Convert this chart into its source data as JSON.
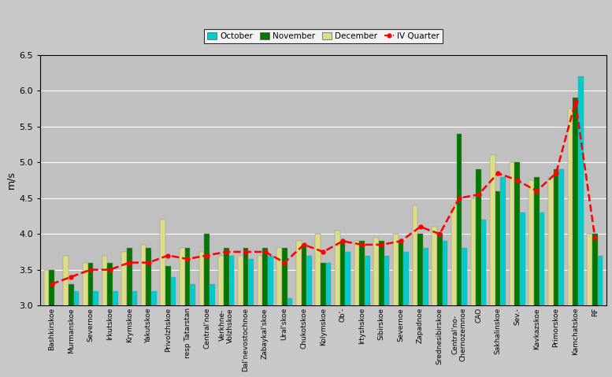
{
  "categories": [
    "Bashkirskoe",
    "Murmanskoe",
    "Severnoe",
    "Irkutskoe",
    "Krymskoe",
    "Yakutskoe",
    "Privolzhskoe",
    "resp Tatarstan",
    "Central'noe",
    "Verkhne-\nVolzhskoe",
    "Dal'nevostochnoe",
    "Zabaykal'skoe",
    "Ural'skoe",
    "Chukotskoe",
    "Kolymskoe",
    "Ob'-",
    "Irtyshskoe",
    "Sibirskoe",
    "Severnoe",
    "Zapadnoe",
    "Srednesibirskoe",
    "Central'no-\nChernozemnoe",
    "CAO",
    "Sakhalinskoe",
    "Sev.-",
    "Kavkazskoe",
    "Primorskoe",
    "Kamchatskoe",
    "RF"
  ],
  "october": [
    3.0,
    3.2,
    3.2,
    3.2,
    3.2,
    3.2,
    3.4,
    3.3,
    3.3,
    3.7,
    3.65,
    3.7,
    3.1,
    3.7,
    3.6,
    3.75,
    3.7,
    3.7,
    3.75,
    3.8,
    3.9,
    3.8,
    4.2,
    4.8,
    4.3,
    4.3,
    4.9,
    6.2,
    3.7
  ],
  "november": [
    3.5,
    3.3,
    3.6,
    3.6,
    3.8,
    3.8,
    3.55,
    3.8,
    4.0,
    3.8,
    3.8,
    3.8,
    3.8,
    3.85,
    3.6,
    3.9,
    3.9,
    3.9,
    3.9,
    4.0,
    4.0,
    5.4,
    4.9,
    4.6,
    5.0,
    4.8,
    4.9,
    5.9,
    4.0
  ],
  "december": [
    3.5,
    3.7,
    3.6,
    3.7,
    3.75,
    3.85,
    4.2,
    3.8,
    3.75,
    3.7,
    3.7,
    3.7,
    3.8,
    3.9,
    4.0,
    4.05,
    3.9,
    3.95,
    4.0,
    4.4,
    4.1,
    4.4,
    4.5,
    5.1,
    5.0,
    4.75,
    4.8,
    5.75,
    4.0
  ],
  "iv_quarter": [
    3.3,
    3.4,
    3.5,
    3.5,
    3.6,
    3.6,
    3.7,
    3.65,
    3.7,
    3.75,
    3.75,
    3.75,
    3.6,
    3.85,
    3.75,
    3.9,
    3.85,
    3.85,
    3.9,
    4.1,
    4.0,
    4.5,
    4.55,
    4.85,
    4.75,
    4.6,
    4.85,
    5.85,
    3.95
  ],
  "colors": {
    "october": "#00CCCC",
    "november": "#007700",
    "december": "#DDDD88",
    "iv_quarter": "red"
  },
  "ylim": [
    3.0,
    6.5
  ],
  "yticks": [
    3.0,
    3.5,
    4.0,
    4.5,
    5.0,
    5.5,
    6.0,
    6.5
  ],
  "ylabel": "m/s",
  "bg_color": "#C0C0C0",
  "fig_color": "#C8C8C8"
}
